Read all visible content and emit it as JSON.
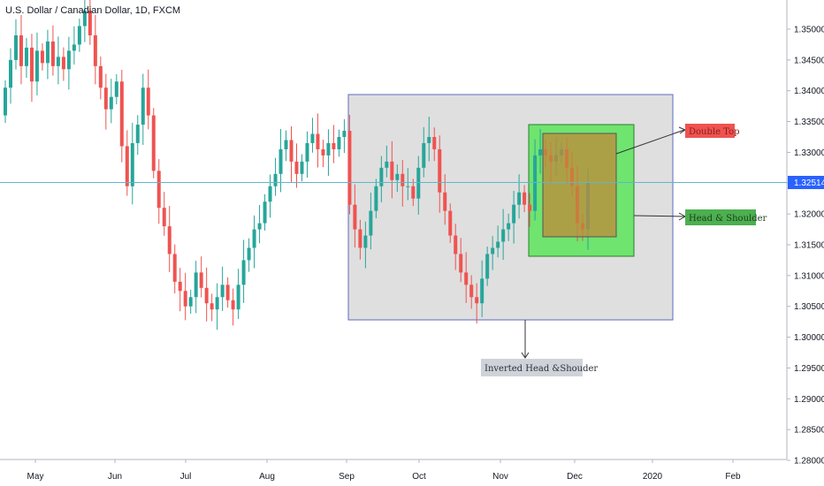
{
  "title": "U.S. Dollar / Canadian Dollar, 1D, FXCM",
  "colors": {
    "up": "#26a69a",
    "down": "#ef5350",
    "last_price_line": "#5fb7c9",
    "last_price_tag": "#2962ff",
    "box_gray": "#bfbfbf",
    "box_green": "#32e632",
    "box_orange": "#c08a3a"
  },
  "last_price": {
    "value": 1.32514,
    "label": "1.32514"
  },
  "annotations": {
    "double_top": "Double Top",
    "head_shoulder": "Head & Shoulder",
    "inverted": "Inverted Head &Shouder"
  },
  "chart_data": {
    "type": "candlestick",
    "title": "U.S. Dollar / Canadian Dollar, 1D, FXCM",
    "ylim": [
      1.28,
      1.356
    ],
    "y_ticks": [
      "1.35000",
      "1.34500",
      "1.34000",
      "1.33500",
      "1.33000",
      "1.32500",
      "1.32000",
      "1.31500",
      "1.31000",
      "1.30500",
      "1.30000",
      "1.29500",
      "1.29000",
      "1.28500",
      "1.28000"
    ],
    "x_ticks": [
      "May",
      "Jun",
      "Jul",
      "Aug",
      "Sep",
      "Oct",
      "Nov",
      "Dec",
      "2020",
      "Feb"
    ],
    "approx_closes": [
      1.3405,
      1.345,
      1.349,
      1.344,
      1.347,
      1.3415,
      1.3465,
      1.3445,
      1.348,
      1.344,
      1.3455,
      1.3435,
      1.3465,
      1.3475,
      1.3505,
      1.353,
      1.349,
      1.344,
      1.3405,
      1.337,
      1.339,
      1.3415,
      1.331,
      1.3245,
      1.3315,
      1.3345,
      1.3405,
      1.336,
      1.327,
      1.321,
      1.318,
      1.3135,
      1.309,
      1.3075,
      1.305,
      1.3065,
      1.3105,
      1.308,
      1.3055,
      1.3045,
      1.3065,
      1.3085,
      1.306,
      1.3045,
      1.3085,
      1.3125,
      1.3145,
      1.3175,
      1.3185,
      1.322,
      1.3245,
      1.3265,
      1.3305,
      1.332,
      1.3285,
      1.3265,
      1.3285,
      1.3315,
      1.333,
      1.3305,
      1.3295,
      1.3315,
      1.3305,
      1.3325,
      1.3335,
      1.3215,
      1.3175,
      1.3145,
      1.3165,
      1.3205,
      1.3245,
      1.3275,
      1.3285,
      1.3255,
      1.3265,
      1.3245,
      1.3245,
      1.3225,
      1.3275,
      1.3315,
      1.3325,
      1.3305,
      1.3235,
      1.3205,
      1.3165,
      1.3135,
      1.3105,
      1.3085,
      1.3065,
      1.3055,
      1.3095,
      1.3135,
      1.3145,
      1.3155,
      1.3175,
      1.3185,
      1.3215,
      1.3235,
      1.3215,
      1.3205,
      1.3295,
      1.3305,
      1.3295,
      1.3285,
      1.3295,
      1.3305,
      1.3275,
      1.3245,
      1.3185,
      1.3175,
      1.3251
    ],
    "last_value": 1.32514,
    "annotations": [
      "Double Top",
      "Head & Shoulder",
      "Inverted Head &Shouder"
    ]
  }
}
